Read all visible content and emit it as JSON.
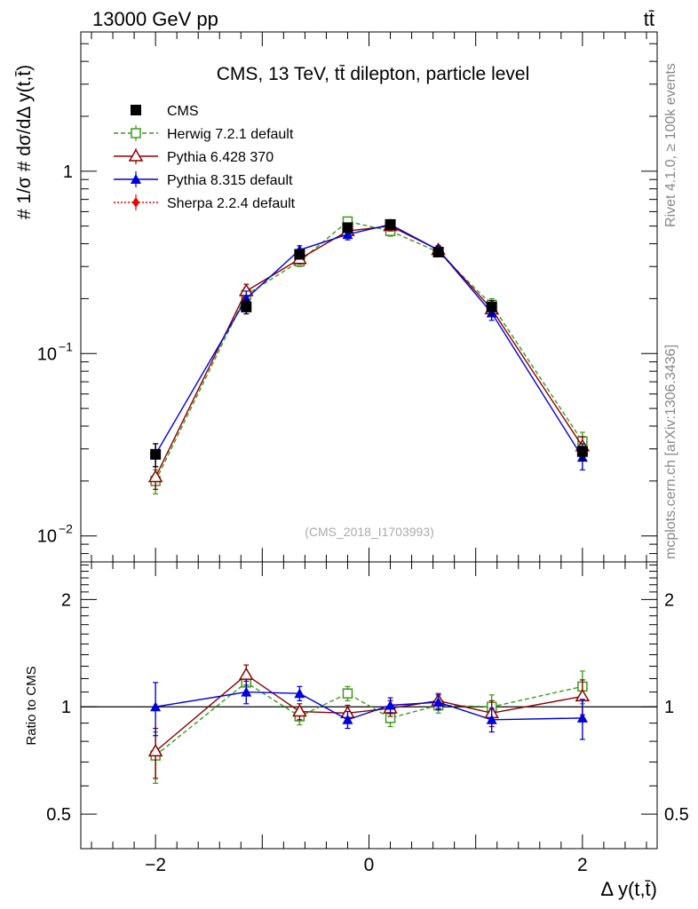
{
  "header": {
    "energy_label": "13000 GeV pp",
    "process_label": "tt̄",
    "side_label_rivet": "Rivet 4.1.0, ≥ 100k events",
    "side_label_mcplots": "mcplots.cern.ch [arXiv:1306.3436]"
  },
  "chart_data": [
    {
      "type": "line",
      "panel": "main",
      "title": "CMS, 13 TeV, tt̄ dilepton, particle level",
      "watermark": "(CMS_2018_I1703993)",
      "ylabel": "# 1/σ # dσ/dΔ y(t,t̄)",
      "xlabel": "Δ y(t,t̄)",
      "yscale": "log",
      "ylim": [
        0.0072,
        5.8
      ],
      "xlim": [
        -2.7,
        2.7
      ],
      "y_ticks": [
        {
          "value": 1,
          "base": "1",
          "exp": ""
        },
        {
          "value": 0.1,
          "base": "10",
          "exp": "−1"
        },
        {
          "value": 0.01,
          "base": "10",
          "exp": "−2"
        }
      ],
      "legend_position": "top-left",
      "series": [
        {
          "name": "CMS",
          "color": "#000000",
          "marker": "square",
          "line": "none",
          "x": [
            -2.0,
            -1.15,
            -0.65,
            -0.2,
            0.2,
            0.65,
            1.15,
            2.0
          ],
          "y": [
            0.028,
            0.18,
            0.35,
            0.49,
            0.51,
            0.36,
            0.18,
            0.029
          ],
          "err": [
            0.004,
            0.015,
            0.02,
            0.02,
            0.02,
            0.02,
            0.015,
            0.003
          ]
        },
        {
          "name": "Herwig 7.2.1 default",
          "color": "#3a9a1a",
          "marker": "open-square",
          "line": "dashed",
          "x": [
            -2.0,
            -1.15,
            -0.65,
            -0.2,
            0.2,
            0.65,
            1.15,
            2.0
          ],
          "y": [
            0.02,
            0.21,
            0.32,
            0.53,
            0.47,
            0.36,
            0.185,
            0.033
          ],
          "err": [
            0.003,
            0.02,
            0.02,
            0.03,
            0.03,
            0.02,
            0.015,
            0.004
          ]
        },
        {
          "name": "Pythia 6.428 370",
          "color": "#8b0000",
          "marker": "open-triangle",
          "line": "solid",
          "x": [
            -2.0,
            -1.15,
            -0.65,
            -0.2,
            0.2,
            0.65,
            1.15,
            2.0
          ],
          "y": [
            0.021,
            0.22,
            0.33,
            0.47,
            0.5,
            0.37,
            0.175,
            0.031
          ],
          "err": [
            0.003,
            0.02,
            0.02,
            0.03,
            0.03,
            0.02,
            0.015,
            0.004
          ]
        },
        {
          "name": "Pythia 8.315 default",
          "color": "#0000dd",
          "marker": "triangle",
          "line": "solid",
          "x": [
            -2.0,
            -1.15,
            -0.65,
            -0.2,
            0.2,
            0.65,
            1.15,
            2.0
          ],
          "y": [
            0.028,
            0.2,
            0.37,
            0.45,
            0.51,
            0.37,
            0.167,
            0.027
          ],
          "err": [
            0.004,
            0.02,
            0.02,
            0.03,
            0.03,
            0.02,
            0.015,
            0.004
          ]
        },
        {
          "name": "Sherpa 2.2.4 default",
          "color": "#ee0000",
          "marker": "diamond",
          "line": "dotted",
          "x": [],
          "y": [],
          "err": []
        }
      ]
    },
    {
      "type": "line",
      "panel": "ratio",
      "ylabel": "Ratio to CMS",
      "xlabel": "Δ y(t,t̄)",
      "yscale": "log",
      "ylim": [
        0.4,
        2.55
      ],
      "xlim": [
        -2.7,
        2.7
      ],
      "y_ticks": [
        0.5,
        1,
        2
      ],
      "x_ticks": [
        -2,
        0,
        2
      ],
      "reference_line": 1,
      "series": [
        {
          "name": "Herwig 7.2.1 default",
          "color": "#3a9a1a",
          "marker": "open-square",
          "line": "dashed",
          "x": [
            -2.0,
            -1.15,
            -0.65,
            -0.2,
            0.2,
            0.65,
            1.15,
            2.0
          ],
          "y": [
            0.73,
            1.17,
            0.94,
            1.09,
            0.93,
            1.01,
            1.0,
            1.14
          ],
          "err": [
            0.12,
            0.07,
            0.05,
            0.05,
            0.05,
            0.05,
            0.08,
            0.12
          ]
        },
        {
          "name": "Pythia 6.428 370",
          "color": "#8b0000",
          "marker": "open-triangle",
          "line": "solid",
          "x": [
            -2.0,
            -1.15,
            -0.65,
            -0.2,
            0.2,
            0.65,
            1.15,
            2.0
          ],
          "y": [
            0.75,
            1.23,
            0.97,
            0.96,
            0.99,
            1.04,
            0.96,
            1.07
          ],
          "err": [
            0.12,
            0.08,
            0.05,
            0.05,
            0.05,
            0.05,
            0.08,
            0.12
          ]
        },
        {
          "name": "Pythia 8.315 default",
          "color": "#0000dd",
          "marker": "triangle",
          "line": "solid",
          "x": [
            -2.0,
            -1.15,
            -0.65,
            -0.2,
            0.2,
            0.65,
            1.15,
            2.0
          ],
          "y": [
            1.0,
            1.1,
            1.09,
            0.92,
            1.01,
            1.03,
            0.92,
            0.93
          ],
          "err": [
            0.17,
            0.08,
            0.05,
            0.05,
            0.05,
            0.05,
            0.07,
            0.12
          ]
        }
      ]
    }
  ]
}
